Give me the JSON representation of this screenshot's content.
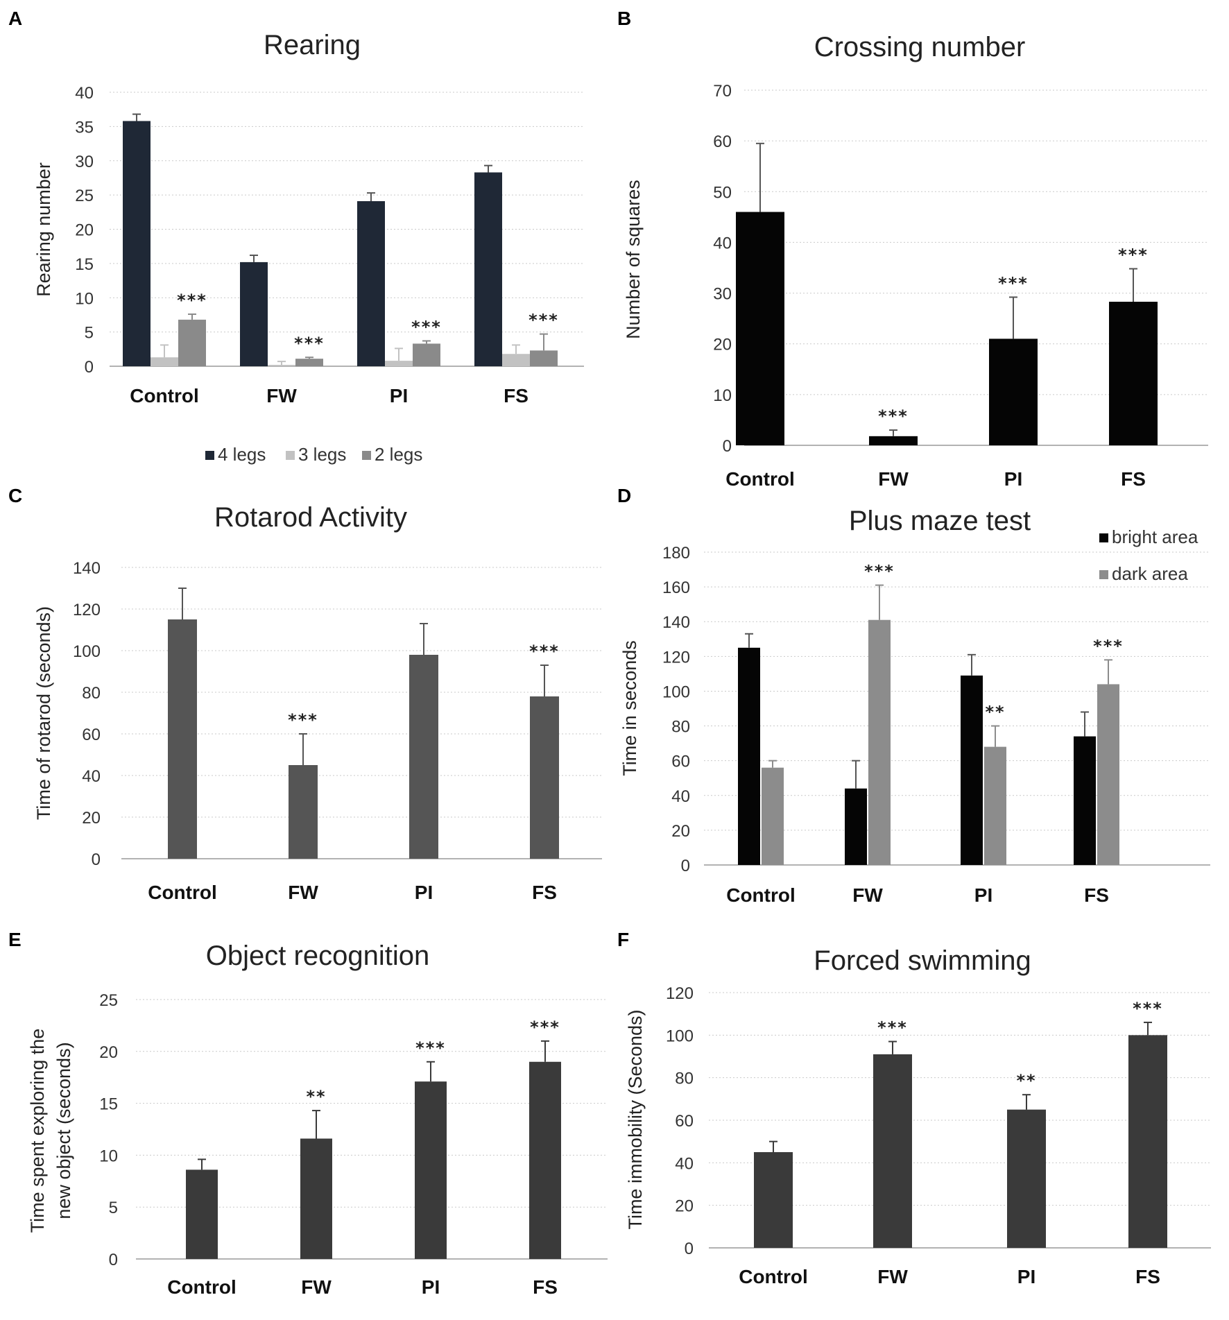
{
  "chart_data": [
    {
      "panel": "A",
      "type": "bar",
      "title": "Rearing",
      "ylabel": "Rearing number",
      "ylim": [
        0,
        40
      ],
      "yticks": [
        0,
        5,
        10,
        15,
        20,
        25,
        30,
        35,
        40
      ],
      "categories": [
        "Control",
        "FW",
        "PI",
        "FS"
      ],
      "series": [
        {
          "name": "4 legs",
          "color": "#1f2836",
          "values": [
            35.8,
            15.2,
            24.1,
            28.3
          ],
          "errors": [
            1.0,
            1.0,
            1.2,
            1.0
          ]
        },
        {
          "name": "3 legs",
          "color": "#c2c2c2",
          "values": [
            1.3,
            0.2,
            0.8,
            1.8
          ],
          "errors": [
            1.8,
            0.5,
            1.8,
            1.3
          ]
        },
        {
          "name": "2 legs",
          "color": "#8a8a8a",
          "values": [
            6.8,
            1.1,
            3.3,
            2.3
          ],
          "errors": [
            0.8,
            0.2,
            0.4,
            2.4
          ]
        }
      ],
      "annotations": [
        {
          "category": "Control",
          "series": "2 legs",
          "text": "***"
        },
        {
          "category": "FW",
          "series": "2 legs",
          "text": "***"
        },
        {
          "category": "PI",
          "series": "2 legs",
          "text": "***"
        },
        {
          "category": "FS",
          "series": "2 legs",
          "text": "***"
        }
      ],
      "legend": {
        "position": "bottom",
        "entries": [
          "4 legs",
          "3 legs",
          "2 legs"
        ]
      },
      "grid": true
    },
    {
      "panel": "B",
      "type": "bar",
      "title": "Crossing number",
      "ylabel": "Number of squares",
      "ylim": [
        0,
        70
      ],
      "yticks": [
        0,
        10,
        20,
        30,
        40,
        50,
        60,
        70
      ],
      "categories": [
        "Control",
        "FW",
        "PI",
        "FS"
      ],
      "series": [
        {
          "name": "Crossing number",
          "color": "#050505",
          "values": [
            46,
            1.8,
            21,
            28.3
          ],
          "errors": [
            13.5,
            1.2,
            8.2,
            6.5
          ]
        }
      ],
      "annotations": [
        {
          "category": "FW",
          "series": "Crossing number",
          "text": "***"
        },
        {
          "category": "PI",
          "series": "Crossing number",
          "text": "***"
        },
        {
          "category": "FS",
          "series": "Crossing number",
          "text": "***"
        }
      ],
      "grid": true
    },
    {
      "panel": "C",
      "type": "bar",
      "title": "Rotarod Activity",
      "ylabel": "Time of rotarod (seconds)",
      "ylim": [
        0,
        140
      ],
      "yticks": [
        0,
        20,
        40,
        60,
        80,
        100,
        120,
        140
      ],
      "categories": [
        "Control",
        "FW",
        "PI",
        "FS"
      ],
      "series": [
        {
          "name": "Rotarod",
          "color": "#555555",
          "values": [
            115,
            45,
            98,
            78
          ],
          "errors": [
            15,
            15,
            15,
            15
          ]
        }
      ],
      "annotations": [
        {
          "category": "FW",
          "series": "Rotarod",
          "text": "***"
        },
        {
          "category": "FS",
          "series": "Rotarod",
          "text": "***"
        }
      ],
      "grid": true
    },
    {
      "panel": "D",
      "type": "bar",
      "title": "Plus maze test",
      "ylabel": "Time in seconds",
      "ylim": [
        0,
        180
      ],
      "yticks": [
        0,
        20,
        40,
        60,
        80,
        100,
        120,
        140,
        160,
        180
      ],
      "categories": [
        "Control",
        "FW",
        "PI",
        "FS"
      ],
      "series": [
        {
          "name": "bright area",
          "color": "#050505",
          "values": [
            125,
            44,
            109,
            74
          ],
          "errors": [
            8,
            16,
            12,
            14
          ]
        },
        {
          "name": "dark area",
          "color": "#8c8c8c",
          "values": [
            56,
            141,
            68,
            104
          ],
          "errors": [
            4,
            20,
            12,
            14
          ]
        }
      ],
      "annotations": [
        {
          "category": "FW",
          "series": "dark area",
          "text": "***"
        },
        {
          "category": "PI",
          "series": "dark area",
          "text": "**"
        },
        {
          "category": "FS",
          "series": "dark area",
          "text": "***"
        }
      ],
      "legend": {
        "position": "top-right",
        "entries": [
          "bright area",
          "dark area"
        ]
      },
      "grid": true
    },
    {
      "panel": "E",
      "type": "bar",
      "title": "Object recognition",
      "ylabel": [
        "Time spent exploring the",
        "new object  (seconds)"
      ],
      "ylim": [
        0,
        25
      ],
      "yticks": [
        0,
        5,
        10,
        15,
        20,
        25
      ],
      "categories": [
        "Control",
        "FW",
        "PI",
        "FS"
      ],
      "series": [
        {
          "name": "Object recognition",
          "color": "#3a3a3a",
          "values": [
            8.6,
            11.6,
            17.1,
            19.0
          ],
          "errors": [
            1.0,
            2.7,
            1.9,
            2.0
          ]
        }
      ],
      "annotations": [
        {
          "category": "FW",
          "series": "Object recognition",
          "text": "**"
        },
        {
          "category": "PI",
          "series": "Object recognition",
          "text": "***"
        },
        {
          "category": "FS",
          "series": "Object recognition",
          "text": "***"
        }
      ],
      "grid": true
    },
    {
      "panel": "F",
      "type": "bar",
      "title": "Forced swimming",
      "ylabel": "Time immobility (Seconds)",
      "ylim": [
        0,
        120
      ],
      "yticks": [
        0,
        20,
        40,
        60,
        80,
        100,
        120
      ],
      "categories": [
        "Control",
        "FW",
        "PI",
        "FS"
      ],
      "series": [
        {
          "name": "Forced swimming",
          "color": "#3a3a3a",
          "values": [
            45,
            91,
            65,
            100
          ],
          "errors": [
            5,
            6,
            7,
            6
          ]
        }
      ],
      "annotations": [
        {
          "category": "FW",
          "series": "Forced swimming",
          "text": "***"
        },
        {
          "category": "PI",
          "series": "Forced swimming",
          "text": "**"
        },
        {
          "category": "FS",
          "series": "Forced swimming",
          "text": "***"
        }
      ],
      "grid": true
    }
  ]
}
